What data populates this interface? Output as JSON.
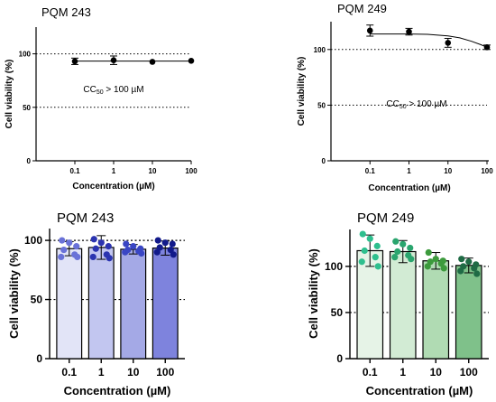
{
  "chart_data": [
    {
      "type": "scatter",
      "title": "PQM 243",
      "xlabel": "Concentration (µM)",
      "ylabel": "Cell viability (%)",
      "x_scale": "log",
      "xlim": [
        0.01,
        100
      ],
      "ylim": [
        0,
        125
      ],
      "xtick_labels": [
        "0.1",
        "1",
        "10",
        "100"
      ],
      "ytick_labels": [
        "0",
        "50",
        "100"
      ],
      "reference_lines": [
        100,
        50
      ],
      "grid": false,
      "annotation": {
        "text": "CC50 > 100 µM",
        "base": "CC",
        "sub": "50",
        "rest": " > 100 µM"
      },
      "points": [
        {
          "x": 0.1,
          "y": 93,
          "err": 3
        },
        {
          "x": 1,
          "y": 94,
          "err": 4
        },
        {
          "x": 10,
          "y": 92.5,
          "err": 0
        },
        {
          "x": 100,
          "y": 93.5,
          "err": 0
        }
      ],
      "fit": {
        "type": "line",
        "y": [
          93.2,
          93.2
        ]
      }
    },
    {
      "type": "scatter",
      "title": "PQM 249",
      "xlabel": "Concentration (µM)",
      "ylabel": "Cell viability (%)",
      "x_scale": "log",
      "xlim": [
        0.01,
        100
      ],
      "ylim": [
        0,
        125
      ],
      "xtick_labels": [
        "0.1",
        "1",
        "10",
        "100"
      ],
      "ytick_labels": [
        "0",
        "50",
        "100"
      ],
      "reference_lines": [
        100,
        50
      ],
      "grid": false,
      "annotation": {
        "text": "CC50 > 100 µM",
        "base": "CC",
        "sub": "50",
        "rest": " > 100 µM"
      },
      "points": [
        {
          "x": 0.1,
          "y": 117,
          "err": 5
        },
        {
          "x": 1,
          "y": 116,
          "err": 3
        },
        {
          "x": 10,
          "y": 106,
          "err": 4
        },
        {
          "x": 100,
          "y": 102,
          "err": 2
        }
      ],
      "fit": {
        "type": "curve",
        "x": [
          0.1,
          1,
          3,
          10,
          20,
          40,
          70,
          100
        ],
        "y": [
          114,
          114,
          113.6,
          112.2,
          110.5,
          107.4,
          104.3,
          102
        ]
      }
    },
    {
      "type": "bar",
      "title": "PQM 243",
      "xlabel": "Concentration (µM)",
      "ylabel": "Cell viability (%)",
      "categories": [
        "0.1",
        "1",
        "10",
        "100"
      ],
      "values": [
        93,
        94,
        92.5,
        93.5
      ],
      "errors": [
        6,
        10,
        4,
        6
      ],
      "ylim": [
        0,
        110
      ],
      "ytick_labels": [
        "0",
        "50",
        "100"
      ],
      "reference_lines": [
        100,
        50
      ],
      "bar_colors": [
        "#e2e4f7",
        "#c2c6f0",
        "#a4a9e6",
        "#7e83dd"
      ],
      "point_colors": [
        "#6a72d8",
        "#2b34b0",
        "#3a46c4",
        "#121a8a"
      ],
      "points": [
        [
          100,
          98,
          95,
          92,
          88,
          86,
          86
        ],
        [
          101,
          98,
          95,
          93,
          88,
          86,
          85
        ],
        [
          97,
          95,
          93,
          92,
          91,
          90,
          89
        ],
        [
          100,
          98,
          97,
          94,
          92,
          90,
          88
        ]
      ]
    },
    {
      "type": "bar",
      "title": "PQM 249",
      "xlabel": "Concentration (µM)",
      "ylabel": "Cell viability (%)",
      "categories": [
        "0.1",
        "1",
        "10",
        "100"
      ],
      "values": [
        117,
        116,
        106,
        101
      ],
      "errors": [
        17,
        12,
        9,
        8
      ],
      "ylim": [
        0,
        140
      ],
      "ytick_labels": [
        "0",
        "50",
        "100"
      ],
      "reference_lines": [
        100,
        50
      ],
      "bar_colors": [
        "#e6f3e7",
        "#d2ebd4",
        "#b0dbb3",
        "#7fc18a"
      ],
      "point_colors": [
        "#2ebf8e",
        "#2aa56e",
        "#3c9a3c",
        "#1f6b45"
      ],
      "points": [
        [
          135,
          130,
          122,
          117,
          110,
          105,
          100
        ],
        [
          127,
          124,
          120,
          116,
          112,
          110,
          108
        ],
        [
          115,
          108,
          106,
          105,
          103,
          100,
          98
        ],
        [
          108,
          105,
          102,
          100,
          98,
          95,
          92
        ]
      ]
    }
  ]
}
